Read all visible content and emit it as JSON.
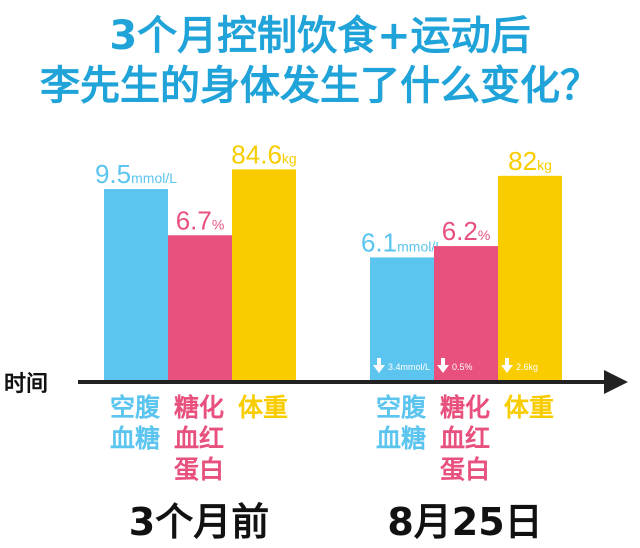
{
  "header": {
    "title_line1": "3个月控制饮食+运动后",
    "title_line2": "李先生的身体发生了什么变化？"
  },
  "axis": {
    "x_label": "时间"
  },
  "chart_data": {
    "type": "bar",
    "title": "3个月控制饮食+运动后 李先生的身体发生了什么变化？",
    "xlabel": "时间",
    "ylabel": "",
    "categories": [
      "3个月前",
      "8月25日"
    ],
    "series": [
      {
        "name": "空腹血糖",
        "unit": "mmol/L",
        "color": "#5bc4ef",
        "values": [
          9.5,
          6.1
        ],
        "changes": [
          "",
          "3.4mmol/L"
        ]
      },
      {
        "name": "糖化血红蛋白",
        "unit": "%",
        "color": "#e8507d",
        "values": [
          6.7,
          6.2
        ],
        "changes": [
          "",
          "0.5%"
        ]
      },
      {
        "name": "体重",
        "unit": "kg",
        "color": "#f9cc00",
        "values": [
          84.6,
          82
        ],
        "changes": [
          "",
          "2.6kg"
        ]
      }
    ],
    "legend": "below each bar",
    "grid": false
  },
  "groups": [
    {
      "label": "3个月前",
      "bars": [
        {
          "number": "9.5",
          "unit": "mmol/L",
          "change": ""
        },
        {
          "number": "6.7",
          "unit": "%",
          "change": ""
        },
        {
          "number": "84.6",
          "unit": "kg",
          "change": ""
        }
      ],
      "categories": [
        "空腹\n血糖",
        "糖化\n血红\n蛋白",
        "体重"
      ]
    },
    {
      "label": "8月25日",
      "bars": [
        {
          "number": "6.1",
          "unit": "mmol/L",
          "change": "3.4mmol/L"
        },
        {
          "number": "6.2",
          "unit": "%",
          "change": "0.5%"
        },
        {
          "number": "82",
          "unit": "kg",
          "change": "2.6kg"
        }
      ],
      "categories": [
        "空腹\n血糖",
        "糖化\n血红\n蛋白",
        "体重"
      ]
    }
  ],
  "colors": {
    "title": "#1fa3d8",
    "axis": "#222222",
    "blue": "#5bc4ef",
    "pink": "#e8507d",
    "yellow": "#f9cc00"
  }
}
